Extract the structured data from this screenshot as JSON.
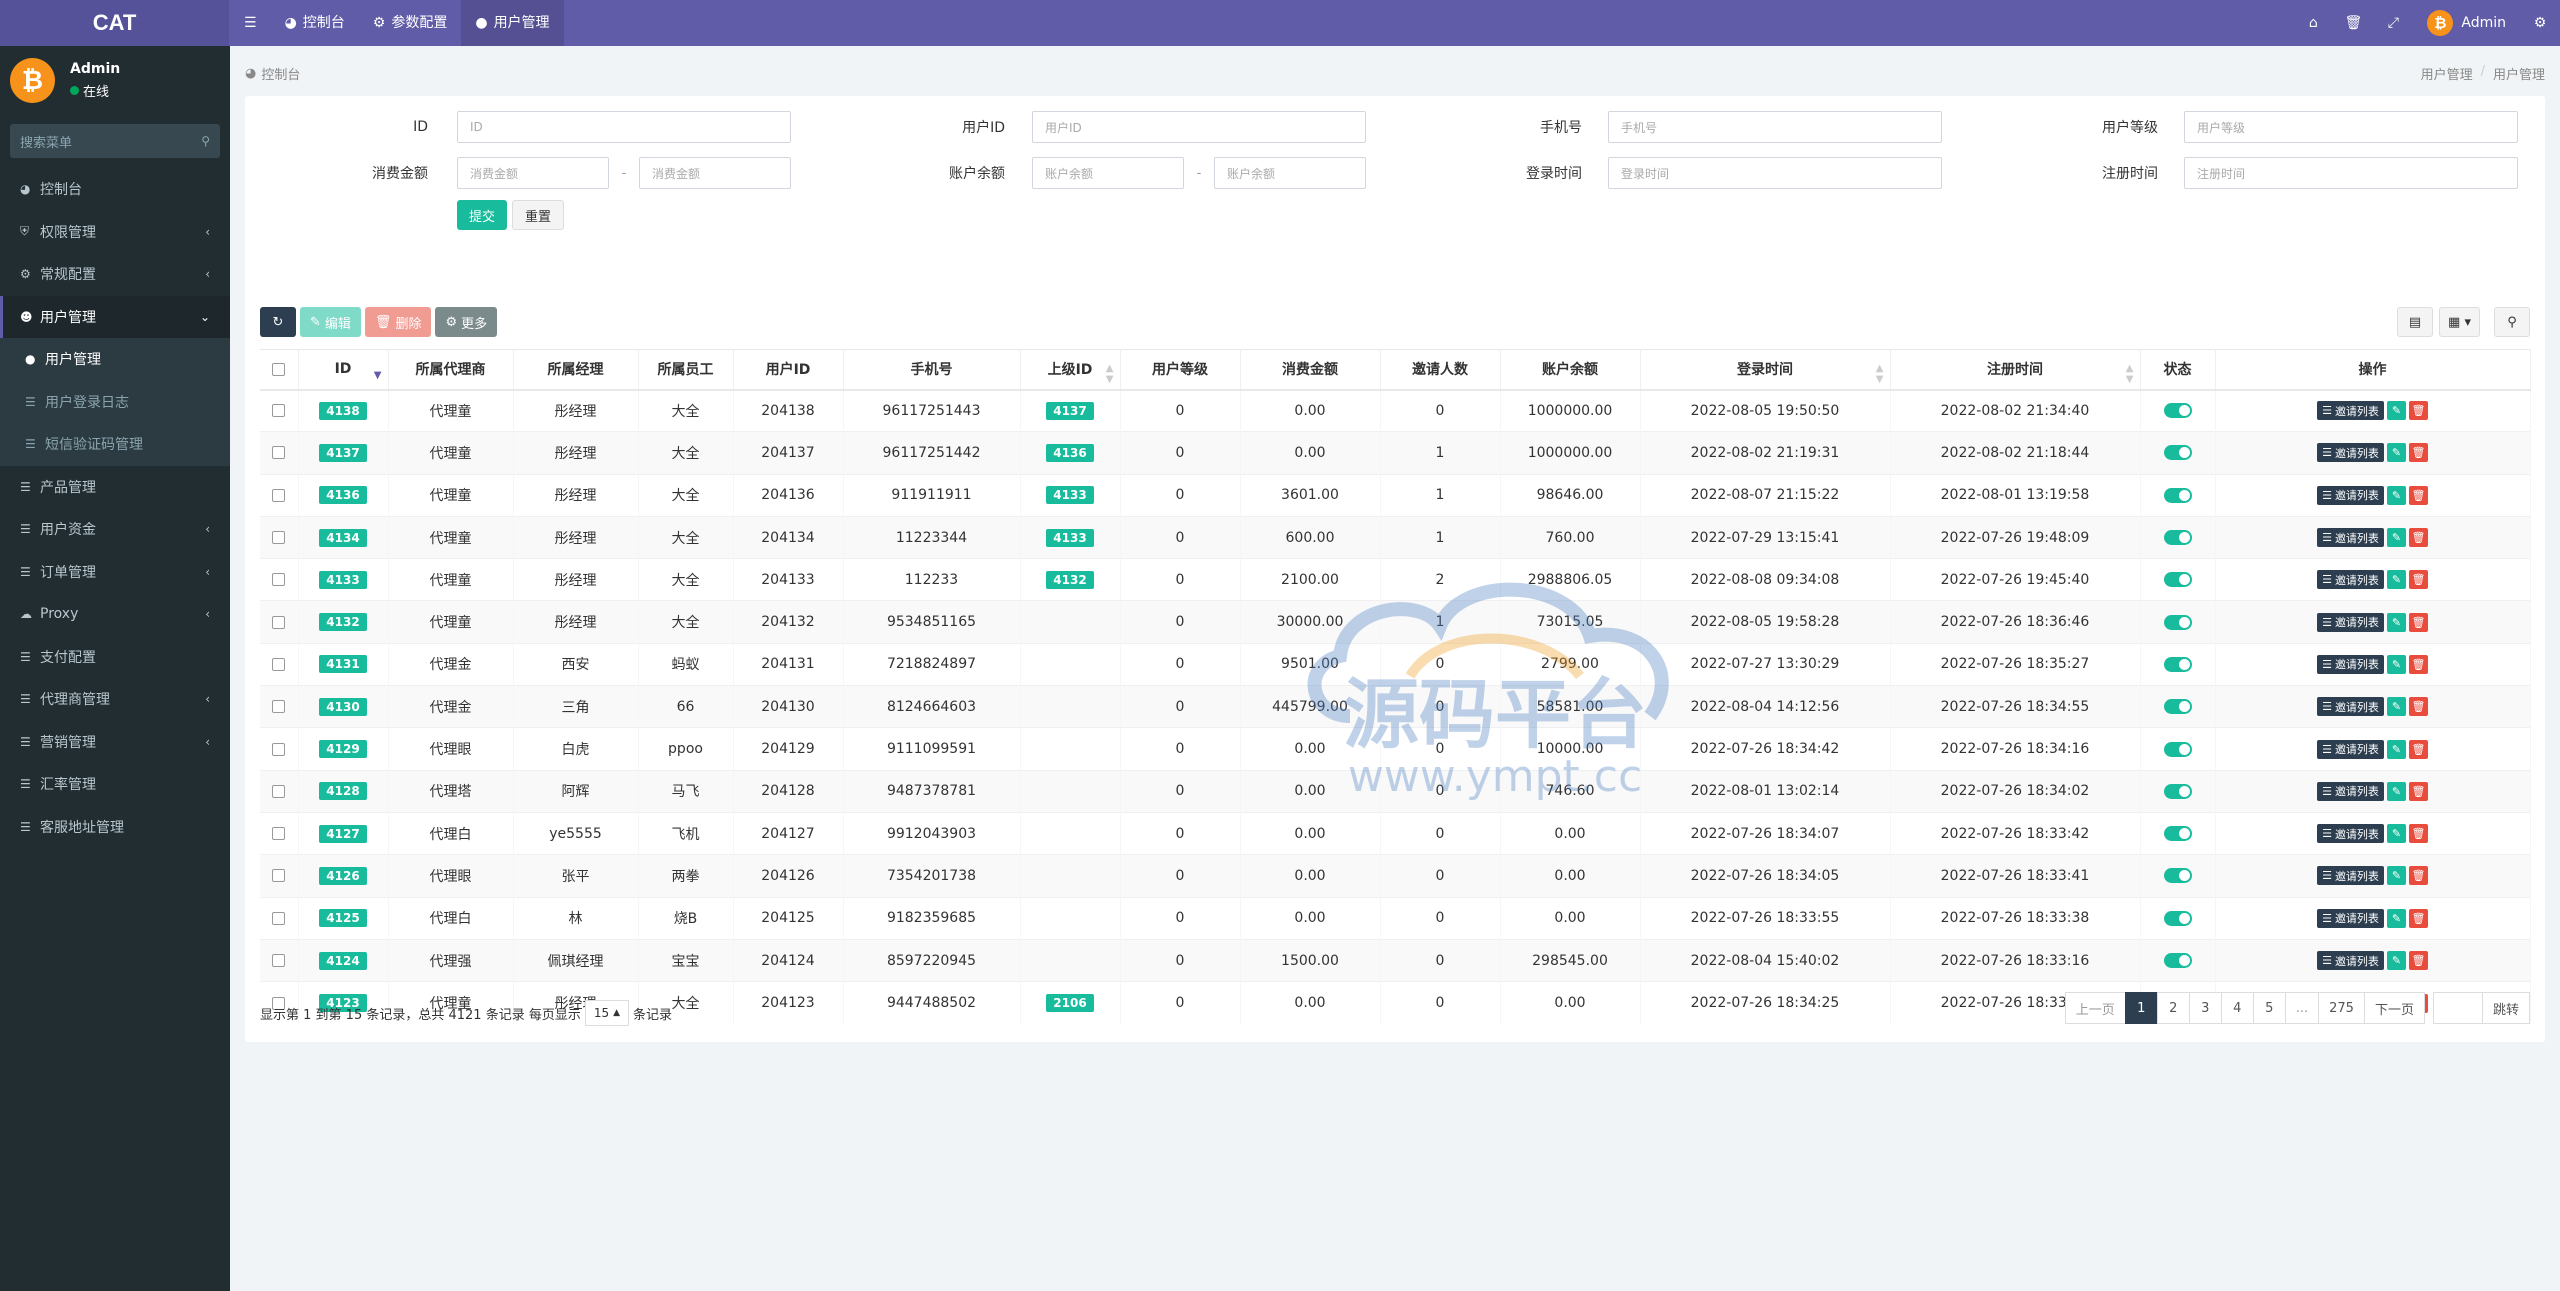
{
  "app": {
    "brand": "CAT"
  },
  "topnav": {
    "tabs": [
      {
        "label": "控制台",
        "icon": "dashboard-icon"
      },
      {
        "label": "参数配置",
        "icon": "cog-icon"
      },
      {
        "label": "用户管理",
        "icon": "user-icon"
      }
    ],
    "user_name": "Admin"
  },
  "sidebar": {
    "user": {
      "name": "Admin",
      "status": "在线"
    },
    "search_placeholder": "搜索菜单",
    "items": [
      {
        "label": "控制台",
        "icon": "dashboard-icon"
      },
      {
        "label": "权限管理",
        "icon": "shield-icon"
      },
      {
        "label": "常规配置",
        "icon": "cogs-icon"
      },
      {
        "label": "用户管理",
        "icon": "user-circle-icon"
      },
      {
        "label": "产品管理",
        "icon": "list-icon"
      },
      {
        "label": "用户资金",
        "icon": "list-icon"
      },
      {
        "label": "订单管理",
        "icon": "list-icon"
      },
      {
        "label": "Proxy",
        "icon": "cloud-icon"
      },
      {
        "label": "支付配置",
        "icon": "list-icon"
      },
      {
        "label": "代理商管理",
        "icon": "list-icon"
      },
      {
        "label": "营销管理",
        "icon": "list-icon"
      },
      {
        "label": "汇率管理",
        "icon": "list-icon"
      },
      {
        "label": "客服地址管理",
        "icon": "list-icon"
      }
    ],
    "sub_items": [
      {
        "label": "用户管理"
      },
      {
        "label": "用户登录日志"
      },
      {
        "label": "短信验证码管理"
      }
    ]
  },
  "breadcrumb": {
    "left": "控制台",
    "right_1": "用户管理",
    "sep": "/",
    "right_2": "用户管理"
  },
  "filters": {
    "id": {
      "label": "ID",
      "placeholder": "ID"
    },
    "user_id": {
      "label": "用户ID",
      "placeholder": "用户ID"
    },
    "phone": {
      "label": "手机号",
      "placeholder": "手机号"
    },
    "level": {
      "label": "用户等级",
      "placeholder": "用户等级"
    },
    "spend": {
      "label": "消费金额",
      "ph_from": "消费金额",
      "ph_to": "消费金额",
      "sep": "-"
    },
    "balance": {
      "label": "账户余额",
      "ph_from": "账户余额",
      "ph_to": "账户余额",
      "sep": "-"
    },
    "login_time": {
      "label": "登录时间",
      "placeholder": "登录时间"
    },
    "reg_time": {
      "label": "注册时间",
      "placeholder": "注册时间"
    },
    "submit": "提交",
    "reset": "重置"
  },
  "toolbar": {
    "edit": "编辑",
    "delete": "删除",
    "more": "更多"
  },
  "table": {
    "headers": [
      "ID",
      "所属代理商",
      "所属经理",
      "所属员工",
      "用户ID",
      "手机号",
      "上级ID",
      "用户等级",
      "消费金额",
      "邀请人数",
      "账户余额",
      "登录时间",
      "注册时间",
      "状态",
      "操作"
    ],
    "invite_label": "邀请列表",
    "rows": [
      {
        "id": "4138",
        "agent": "代理童",
        "manager": "彤经理",
        "staff": "大全",
        "uid": "204138",
        "phone": "96117251443",
        "parent": "4137",
        "level": "0",
        "spend": "0.00",
        "invites": "0",
        "balance": "1000000.00",
        "login": "2022-08-05 19:50:50",
        "reg": "2022-08-02 21:34:40"
      },
      {
        "id": "4137",
        "agent": "代理童",
        "manager": "彤经理",
        "staff": "大全",
        "uid": "204137",
        "phone": "96117251442",
        "parent": "4136",
        "level": "0",
        "spend": "0.00",
        "invites": "1",
        "balance": "1000000.00",
        "login": "2022-08-02 21:19:31",
        "reg": "2022-08-02 21:18:44"
      },
      {
        "id": "4136",
        "agent": "代理童",
        "manager": "彤经理",
        "staff": "大全",
        "uid": "204136",
        "phone": "911911911",
        "parent": "4133",
        "level": "0",
        "spend": "3601.00",
        "invites": "1",
        "balance": "98646.00",
        "login": "2022-08-07 21:15:22",
        "reg": "2022-08-01 13:19:58"
      },
      {
        "id": "4134",
        "agent": "代理童",
        "manager": "彤经理",
        "staff": "大全",
        "uid": "204134",
        "phone": "11223344",
        "parent": "4133",
        "level": "0",
        "spend": "600.00",
        "invites": "1",
        "balance": "760.00",
        "login": "2022-07-29 13:15:41",
        "reg": "2022-07-26 19:48:09"
      },
      {
        "id": "4133",
        "agent": "代理童",
        "manager": "彤经理",
        "staff": "大全",
        "uid": "204133",
        "phone": "112233",
        "parent": "4132",
        "level": "0",
        "spend": "2100.00",
        "invites": "2",
        "balance": "2988806.05",
        "login": "2022-08-08 09:34:08",
        "reg": "2022-07-26 19:45:40"
      },
      {
        "id": "4132",
        "agent": "代理童",
        "manager": "彤经理",
        "staff": "大全",
        "uid": "204132",
        "phone": "9534851165",
        "parent": "",
        "level": "0",
        "spend": "30000.00",
        "invites": "1",
        "balance": "73015.05",
        "login": "2022-08-05 19:58:28",
        "reg": "2022-07-26 18:36:46"
      },
      {
        "id": "4131",
        "agent": "代理金",
        "manager": "西安",
        "staff": "蚂蚁",
        "uid": "204131",
        "phone": "7218824897",
        "parent": "",
        "level": "0",
        "spend": "9501.00",
        "invites": "0",
        "balance": "2799.00",
        "login": "2022-07-27 13:30:29",
        "reg": "2022-07-26 18:35:27"
      },
      {
        "id": "4130",
        "agent": "代理金",
        "manager": "三角",
        "staff": "66",
        "uid": "204130",
        "phone": "8124664603",
        "parent": "",
        "level": "0",
        "spend": "445799.00",
        "invites": "0",
        "balance": "58581.00",
        "login": "2022-08-04 14:12:56",
        "reg": "2022-07-26 18:34:55"
      },
      {
        "id": "4129",
        "agent": "代理眼",
        "manager": "白虎",
        "staff": "ppoo",
        "uid": "204129",
        "phone": "9111099591",
        "parent": "",
        "level": "0",
        "spend": "0.00",
        "invites": "0",
        "balance": "10000.00",
        "login": "2022-07-26 18:34:42",
        "reg": "2022-07-26 18:34:16"
      },
      {
        "id": "4128",
        "agent": "代理塔",
        "manager": "阿辉",
        "staff": "马飞",
        "uid": "204128",
        "phone": "9487378781",
        "parent": "",
        "level": "0",
        "spend": "0.00",
        "invites": "0",
        "balance": "746.60",
        "login": "2022-08-01 13:02:14",
        "reg": "2022-07-26 18:34:02"
      },
      {
        "id": "4127",
        "agent": "代理白",
        "manager": "ye5555",
        "staff": "飞机",
        "uid": "204127",
        "phone": "9912043903",
        "parent": "",
        "level": "0",
        "spend": "0.00",
        "invites": "0",
        "balance": "0.00",
        "login": "2022-07-26 18:34:07",
        "reg": "2022-07-26 18:33:42"
      },
      {
        "id": "4126",
        "agent": "代理眼",
        "manager": "张平",
        "staff": "两拳",
        "uid": "204126",
        "phone": "7354201738",
        "parent": "",
        "level": "0",
        "spend": "0.00",
        "invites": "0",
        "balance": "0.00",
        "login": "2022-07-26 18:34:05",
        "reg": "2022-07-26 18:33:41"
      },
      {
        "id": "4125",
        "agent": "代理白",
        "manager": "林",
        "staff": "烧B",
        "uid": "204125",
        "phone": "9182359685",
        "parent": "",
        "level": "0",
        "spend": "0.00",
        "invites": "0",
        "balance": "0.00",
        "login": "2022-07-26 18:33:55",
        "reg": "2022-07-26 18:33:38"
      },
      {
        "id": "4124",
        "agent": "代理强",
        "manager": "佩琪经理",
        "staff": "宝宝",
        "uid": "204124",
        "phone": "8597220945",
        "parent": "",
        "level": "0",
        "spend": "1500.00",
        "invites": "0",
        "balance": "298545.00",
        "login": "2022-08-04 15:40:02",
        "reg": "2022-07-26 18:33:16"
      },
      {
        "id": "4123",
        "agent": "代理童",
        "manager": "彤经理",
        "staff": "大全",
        "uid": "204123",
        "phone": "9447488502",
        "parent": "2106",
        "level": "0",
        "spend": "0.00",
        "invites": "0",
        "balance": "0.00",
        "login": "2022-07-26 18:34:25",
        "reg": "2022-07-26 18:33:10"
      }
    ]
  },
  "pagination": {
    "info_prefix": "显示第 1 到第 15 条记录，总共 4121 条记录 每页显示",
    "page_size": "15",
    "info_suffix": "条记录",
    "prev": "上一页",
    "pages": [
      "1",
      "2",
      "3",
      "4",
      "5",
      "...",
      "275"
    ],
    "next": "下一页",
    "jump": "跳转"
  },
  "watermark": {
    "text_cn": "源码平台",
    "text_url": "www.ympt.cc"
  },
  "colors": {
    "header": "#605ca8",
    "sidebar": "#222d32",
    "accent": "#18bc9c",
    "danger": "#e74c3c",
    "dark": "#2c3e50"
  }
}
